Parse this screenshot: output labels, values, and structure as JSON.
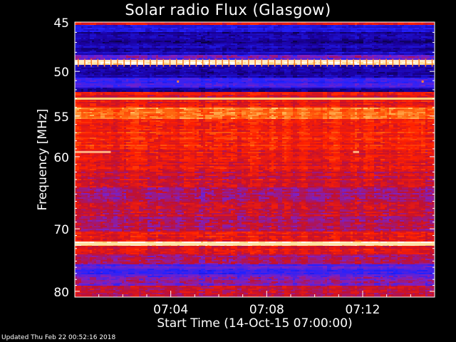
{
  "title": "Solar radio Flux (Glasgow)",
  "footer": "Updated Thu Feb 22 00:52:16 2018",
  "chart_data": {
    "type": "heatmap",
    "title": "Solar radio Flux (Glasgow)",
    "xlabel": "Start Time (14-Oct-15 07:00:00)",
    "ylabel": "Frequency [MHz]",
    "y_scale": "log",
    "x_unit": "minutes after 07:00",
    "xlim": [
      0,
      15
    ],
    "ylim": [
      45,
      81
    ],
    "y_ticks": [
      {
        "value": 45,
        "label": "45"
      },
      {
        "value": 50,
        "label": "50"
      },
      {
        "value": 55,
        "label": "55"
      },
      {
        "value": 60,
        "label": "60"
      },
      {
        "value": 70,
        "label": "70"
      },
      {
        "value": 80,
        "label": "80"
      }
    ],
    "x_ticks": [
      {
        "value": 4,
        "label": "07:04"
      },
      {
        "value": 8,
        "label": "07:08"
      },
      {
        "value": 12,
        "label": "07:12"
      }
    ],
    "colormap": [
      "#000000",
      "#1a00a0",
      "#2222ff",
      "#8020c0",
      "#c01030",
      "#ff2000",
      "#ff6a10",
      "#ffd070",
      "#ffffff"
    ],
    "frequency_bands": [
      {
        "from": 45.0,
        "to": 45.3,
        "level": 0.55
      },
      {
        "from": 45.3,
        "to": 45.9,
        "level": 0.22
      },
      {
        "from": 45.9,
        "to": 47.2,
        "level": 0.12
      },
      {
        "from": 47.2,
        "to": 48.2,
        "level": 0.16
      },
      {
        "from": 48.2,
        "to": 48.8,
        "level": 0.35
      },
      {
        "from": 48.8,
        "to": 49.3,
        "level": 0.95
      },
      {
        "from": 49.3,
        "to": 50.6,
        "level": 0.14
      },
      {
        "from": 50.6,
        "to": 51.8,
        "level": 0.28
      },
      {
        "from": 51.8,
        "to": 52.3,
        "level": 0.12
      },
      {
        "from": 52.3,
        "to": 52.9,
        "level": 0.55
      },
      {
        "from": 52.9,
        "to": 53.1,
        "level": 0.85
      },
      {
        "from": 53.1,
        "to": 54.0,
        "level": 0.58
      },
      {
        "from": 54.0,
        "to": 55.3,
        "level": 0.75
      },
      {
        "from": 55.3,
        "to": 59.0,
        "level": 0.62
      },
      {
        "from": 59.0,
        "to": 62.0,
        "level": 0.57
      },
      {
        "from": 62.0,
        "to": 64.0,
        "level": 0.52
      },
      {
        "from": 64.0,
        "to": 66.0,
        "level": 0.45
      },
      {
        "from": 66.0,
        "to": 68.0,
        "level": 0.5
      },
      {
        "from": 68.0,
        "to": 70.5,
        "level": 0.46
      },
      {
        "from": 70.5,
        "to": 72.0,
        "level": 0.56
      },
      {
        "from": 72.0,
        "to": 72.5,
        "level": 0.92
      },
      {
        "from": 72.5,
        "to": 74.0,
        "level": 0.55
      },
      {
        "from": 74.0,
        "to": 75.5,
        "level": 0.44
      },
      {
        "from": 75.5,
        "to": 77.5,
        "level": 0.3
      },
      {
        "from": 77.5,
        "to": 79.0,
        "level": 0.38
      },
      {
        "from": 79.0,
        "to": 81.0,
        "level": 0.5
      }
    ],
    "features": [
      {
        "type": "line",
        "freq": 48.9,
        "level": 0.95,
        "note": "bright horizontal band"
      },
      {
        "type": "line",
        "freq": 53.0,
        "level": 0.88
      },
      {
        "type": "line",
        "freq": 72.3,
        "level": 0.92
      },
      {
        "type": "blip",
        "t": 4.3,
        "freq": 51.1
      },
      {
        "type": "blip",
        "t": 14.5,
        "freq": 51.1
      },
      {
        "type": "segment",
        "t_from": 0.0,
        "t_to": 1.5,
        "freq": 59.4
      },
      {
        "type": "segment",
        "t_from": 11.6,
        "t_to": 11.85,
        "freq": 59.4
      }
    ]
  }
}
